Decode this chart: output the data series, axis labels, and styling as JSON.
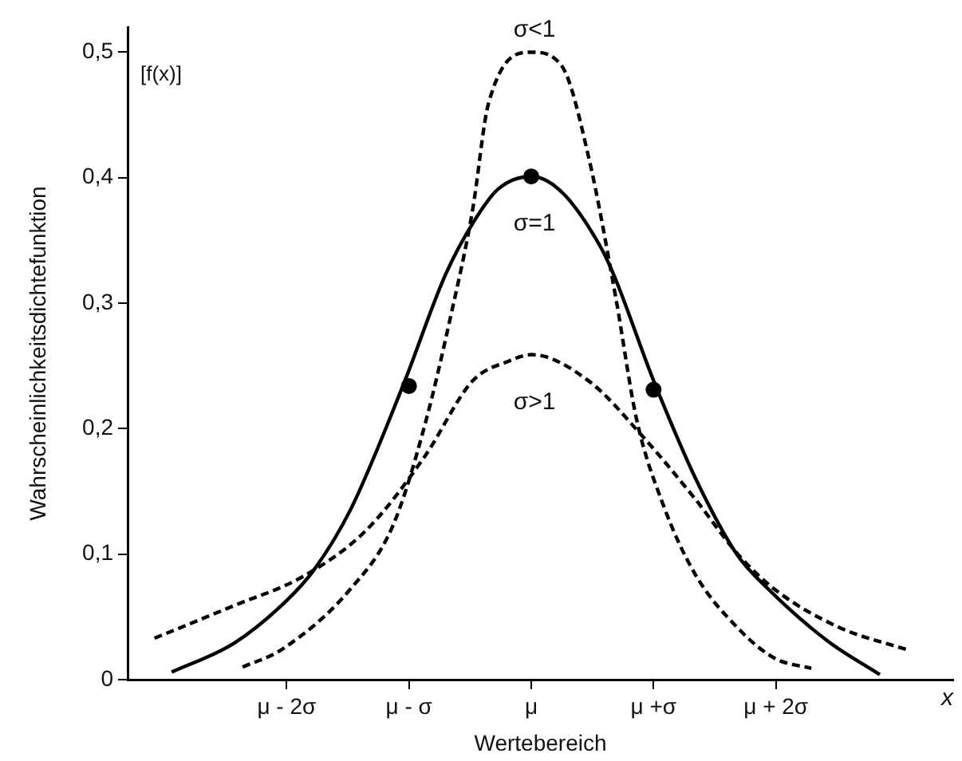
{
  "chart_data": {
    "type": "line",
    "xlabel": "Wertebereich",
    "ylabel": "Wahrscheinlichkeitsdichtefunktion",
    "annotations": [
      "[f(x)]",
      "x"
    ],
    "xlim": [
      -3.3,
      3.45
    ],
    "xticks": [
      {
        "value": -2,
        "label": "μ - 2σ"
      },
      {
        "value": -1,
        "label": "μ - σ"
      },
      {
        "value": 0,
        "label": "μ"
      },
      {
        "value": 1,
        "label": "μ +σ"
      },
      {
        "value": 2,
        "label": "μ + 2σ"
      }
    ],
    "ylim": [
      0,
      0.52
    ],
    "yticks": [
      0,
      {
        "value": 0.1,
        "label": "0,1"
      },
      {
        "value": 0.2,
        "label": "0,2"
      },
      {
        "value": 0.3,
        "label": "0,3"
      },
      {
        "value": 0.4,
        "label": "0,4"
      },
      {
        "value": 0.5,
        "label": "0,5"
      }
    ],
    "grid": false,
    "legend": false,
    "series": [
      {
        "name": "σ<1",
        "color": "#000000",
        "line_style": "dashed",
        "marker": "none",
        "x": [
          -2.36,
          -2.04,
          -1.48,
          -1.13,
          -0.87,
          -0.66,
          -0.48,
          -0.35,
          0,
          0.25,
          0.47,
          0.69,
          0.86,
          1.08,
          1.34,
          1.68,
          1.99,
          2.29
        ],
        "values": [
          0.01,
          0.024,
          0.072,
          0.123,
          0.203,
          0.289,
          0.374,
          0.459,
          0.5,
          0.489,
          0.416,
          0.305,
          0.208,
          0.139,
          0.084,
          0.042,
          0.017,
          0.009
        ]
      },
      {
        "name": "σ=1",
        "color": "#000000",
        "line_style": "solid",
        "marker": "none",
        "x": [
          -2.94,
          -2.43,
          -2,
          -1.78,
          -1.48,
          -1.05,
          -0.7,
          -0.47,
          -0.27,
          0,
          0.56,
          1.03,
          1.34,
          1.68,
          1.94,
          2.42,
          2.85
        ],
        "values": [
          0.006,
          0.029,
          0.063,
          0.087,
          0.135,
          0.234,
          0.323,
          0.365,
          0.391,
          0.401,
          0.346,
          0.231,
          0.161,
          0.1,
          0.072,
          0.031,
          0.004
        ]
      },
      {
        "name": "σ>1",
        "color": "#000000",
        "line_style": "dashed",
        "marker": "none",
        "x": [
          -3.08,
          -2.43,
          -1.87,
          -1.35,
          -0.87,
          -0.48,
          -0.18,
          0,
          0.47,
          0.9,
          1.34,
          1.68,
          1.99,
          2.51,
          3.1
        ],
        "values": [
          0.033,
          0.059,
          0.082,
          0.119,
          0.178,
          0.238,
          0.254,
          0.259,
          0.238,
          0.195,
          0.144,
          0.101,
          0.072,
          0.042,
          0.023
        ]
      },
      {
        "type": "scatter",
        "color": "#000000",
        "marker": "circle",
        "x": [
          -1,
          0,
          1
        ],
        "values": [
          0.234,
          0.401,
          0.231
        ]
      }
    ]
  }
}
